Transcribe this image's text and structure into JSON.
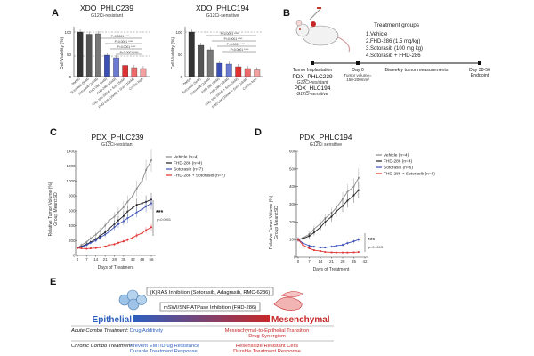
{
  "panels": {
    "A": "A",
    "B": "B",
    "C": "C",
    "D": "D",
    "E": "E"
  },
  "colors": {
    "vehicle": "#8a8a8a",
    "fhd": "#222222",
    "soto": "#3b4fb5",
    "combo": "#e03232",
    "epithelial": "#2d5fbf",
    "mesenchymal": "#c62828"
  },
  "panelA": {
    "left": {
      "title": "XDO_PHLC239",
      "subtitle": "G12Ci-resistant",
      "ylabel": "Cell Viability (%)",
      "yticks": [
        "0",
        "50",
        "100"
      ],
      "categories": [
        "DMSO",
        "Sotorasib (5nM)",
        "Sotorasib (10nM)",
        "FHD-286 (5nM)",
        "FHD-286 (10nM)",
        "FHD-286 (5nM) + Soto (5nM)",
        "FHD-286 (10nM) + Soto (10nM)",
        "Combo high"
      ],
      "values": [
        100,
        95,
        96,
        48,
        42,
        25,
        20,
        18
      ],
      "pvals": [
        "P<0.0001 ****",
        "P<0.0001 ****",
        "P<0.0001 ****",
        "P<0.0001 ****"
      ]
    },
    "right": {
      "title": "XDO_PHLC194",
      "subtitle": "G12Ci-sensitive",
      "ylabel": "Cell Viability (%)",
      "yticks": [
        "0",
        "50",
        "100"
      ],
      "categories": [
        "DMSO",
        "Sotorasib (5nM)",
        "Sotorasib (10nM)",
        "FHD-286 (5nM)",
        "FHD-286 (10nM)",
        "FHD-286 (5nM) + Soto (5nM)",
        "FHD-286 (10nM) + Soto (10nM)",
        "Combo high"
      ],
      "values": [
        100,
        70,
        60,
        30,
        28,
        22,
        18,
        15
      ],
      "pvals": [
        "P<0.0001 ****",
        "P<0.0001 ****",
        "P<0.0001 ****",
        "P<0.0001 ****"
      ]
    }
  },
  "panelB": {
    "groups_title": "Treatment groups",
    "groups": [
      "1.Vehicle",
      "2.FHD-286 (1.5 mg/kg)",
      "3.Sotorasib (100 mg kg)",
      "4.Sotorasib + FHD-286"
    ],
    "implant_label": "Tumor Implantation",
    "models": [
      {
        "name": "PDX_PHLC239",
        "desc": "G12Ci-resistant"
      },
      {
        "name": "PDX_HLC194",
        "desc": "G12Ci-sensitive"
      }
    ],
    "day0": "Day 0",
    "volume": "Tumor volume=",
    "volume_range": "150-200mm³",
    "measure": "Biweekly tumor measurements",
    "end": "Day 38-56",
    "endpoint": "Endpoint"
  },
  "panelC": {
    "title": "PDX_PHLC239",
    "subtitle": "G12Ci-resistant",
    "ylabel_1": "Relative Tumor Volume (%)",
    "ylabel_2": "Group Mean±SD",
    "xlabel": "Days of Treatment",
    "yticks": [
      "0",
      "200",
      "400",
      "600",
      "800",
      "1000",
      "1200",
      "1400"
    ],
    "xticks": [
      "0",
      "7",
      "14",
      "21",
      "28",
      "35",
      "42",
      "49",
      "56"
    ],
    "legend": [
      "Vehicle (n=4)",
      "FHD-286 (n=4)",
      "Sotorasib (n=7)",
      "FHD-286 + Sotorasib (n=7)"
    ],
    "sig": "***",
    "pval": "p<0.0001"
  },
  "panelD": {
    "title": "PDX_PHLC194",
    "subtitle": "G12Ci sensitive",
    "ylabel_1": "Relative Tumor Volume (%)",
    "ylabel_2": "Group Mean±SD",
    "xlabel": "Days of Treatment",
    "yticks": [
      "0",
      "100",
      "200",
      "300",
      "400",
      "500",
      "600"
    ],
    "xticks": [
      "0",
      "7",
      "14",
      "21",
      "28",
      "35",
      "42"
    ],
    "legend": [
      "Vehicle (n=4)",
      "FHD-286 (n=4)",
      "Sotorasib (n=6)",
      "FHD-286 + Sotorasib (n=6)"
    ],
    "sig": "***",
    "pval": "p=0.0003"
  },
  "panelE": {
    "kras": "(K)RAS Inhibition (Sotorasib, Adagrasib, RMC-6236)",
    "swi": "mSWI/SNF ATPase Inhibition (FHD-286)",
    "epithelial": "Epithelial",
    "mesenchymal": "Mesenchymal",
    "acute_label": "Acute Combo Treatment:",
    "acute_left": "Drug Additivity",
    "acute_right_1": "Mesenchymal-to-Epithelial Transition",
    "acute_right_2": "Drug Synergism",
    "chronic_label": "Chronic Combo Treatment:",
    "chronic_left_1": "Prevent EMT/Drug Resistance",
    "chronic_left_2": "Durable Treatment Response",
    "chronic_right_1": "Resensitize Resistant Cells",
    "chronic_right_2": "Durable Treatment Response"
  },
  "chart_data": [
    {
      "type": "line",
      "title": "PDX_PHLC239",
      "xlabel": "Days of Treatment",
      "ylabel": "Relative Tumor Volume (%) Group Mean±SD",
      "xlim": [
        0,
        56
      ],
      "ylim": [
        0,
        1400
      ],
      "series": [
        {
          "name": "Vehicle (n=4)",
          "x": [
            0,
            3,
            7,
            10,
            14,
            17,
            21,
            24,
            28,
            31,
            35,
            38,
            42,
            45,
            49,
            52,
            56
          ],
          "y": [
            100,
            140,
            180,
            230,
            280,
            330,
            400,
            470,
            520,
            580,
            650,
            720,
            800,
            900,
            1000,
            1150,
            1280
          ]
        },
        {
          "name": "FHD-286 (n=4)",
          "x": [
            0,
            3,
            7,
            10,
            14,
            17,
            21,
            24,
            28,
            31,
            35,
            38,
            42,
            45,
            49,
            52,
            56
          ],
          "y": [
            100,
            120,
            150,
            180,
            220,
            260,
            310,
            360,
            420,
            470,
            530,
            590,
            640,
            680,
            700,
            720,
            750
          ]
        },
        {
          "name": "Sotorasib (n=7)",
          "x": [
            0,
            3,
            7,
            10,
            14,
            17,
            21,
            24,
            28,
            31,
            35,
            38,
            42,
            45,
            49,
            52,
            56
          ],
          "y": [
            100,
            115,
            140,
            170,
            200,
            240,
            280,
            320,
            380,
            420,
            460,
            500,
            540,
            580,
            620,
            660,
            700
          ]
        },
        {
          "name": "FHD-286 + Sotorasib (n=7)",
          "x": [
            0,
            3,
            7,
            10,
            14,
            17,
            21,
            24,
            28,
            31,
            35,
            38,
            42,
            45,
            49,
            52,
            56
          ],
          "y": [
            100,
            95,
            90,
            95,
            100,
            110,
            120,
            140,
            150,
            170,
            190,
            210,
            240,
            270,
            300,
            340,
            380
          ]
        }
      ]
    },
    {
      "type": "line",
      "title": "PDX_PHLC194",
      "xlabel": "Days of Treatment",
      "ylabel": "Relative Tumor Volume (%) Group Mean±SD",
      "xlim": [
        0,
        42
      ],
      "ylim": [
        0,
        600
      ],
      "series": [
        {
          "name": "Vehicle (n=4)",
          "x": [
            0,
            3,
            7,
            10,
            14,
            17,
            21,
            24,
            28,
            31,
            35,
            38
          ],
          "y": [
            100,
            110,
            130,
            160,
            190,
            220,
            250,
            280,
            330,
            370,
            400,
            450
          ]
        },
        {
          "name": "FHD-286 (n=4)",
          "x": [
            0,
            3,
            7,
            10,
            14,
            17,
            21,
            24,
            28,
            31,
            35,
            38
          ],
          "y": [
            100,
            105,
            120,
            140,
            170,
            200,
            230,
            260,
            290,
            320,
            350,
            380
          ]
        },
        {
          "name": "Sotorasib (n=6)",
          "x": [
            0,
            3,
            7,
            10,
            14,
            17,
            21,
            24,
            28,
            31,
            35,
            38
          ],
          "y": [
            100,
            80,
            65,
            60,
            55,
            55,
            60,
            65,
            70,
            80,
            90,
            100
          ]
        },
        {
          "name": "FHD-286 + Sotorasib (n=6)",
          "x": [
            0,
            3,
            7,
            10,
            14,
            17,
            21,
            24,
            28,
            31,
            35,
            38
          ],
          "y": [
            100,
            70,
            50,
            40,
            35,
            30,
            28,
            27,
            27,
            27,
            28,
            30
          ]
        }
      ]
    }
  ]
}
